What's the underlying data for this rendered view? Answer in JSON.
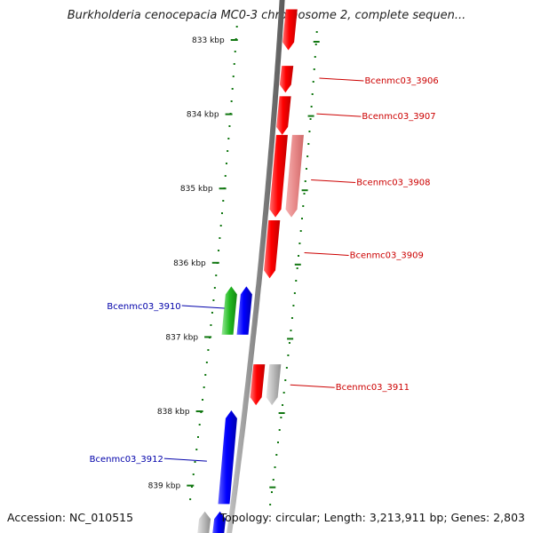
{
  "header": {
    "title": "Burkholderia cenocepacia MC0-3 chromosome 2, complete sequen..."
  },
  "footer": {
    "accession": "Accession: NC_010515",
    "summary": "Topology: circular; Length: 3,213,911 bp; Genes: 2,803"
  },
  "colors": {
    "forward_gene": "#ff0000",
    "forward_gene_faded": "#e88a8a",
    "reverse_gene": "#0000ff",
    "green_gene": "#22bb22",
    "pseudo_gene": "#bbbbbb",
    "backbone": "#888888",
    "ticks": "#117711",
    "forward_label": "#cc0000",
    "reverse_label": "#0000aa"
  },
  "ruler": [
    {
      "label": "833 kbp",
      "kbp": 833
    },
    {
      "label": "834 kbp",
      "kbp": 834
    },
    {
      "label": "835 kbp",
      "kbp": 835
    },
    {
      "label": "836 kbp",
      "kbp": 836
    },
    {
      "label": "837 kbp",
      "kbp": 837
    },
    {
      "label": "838 kbp",
      "kbp": 838
    },
    {
      "label": "839 kbp",
      "kbp": 839
    }
  ],
  "genes": [
    {
      "strand": "+",
      "start": 832.6,
      "end": 833.15,
      "type": "forward"
    },
    {
      "strand": "+",
      "start": 833.36,
      "end": 833.72,
      "type": "forward"
    },
    {
      "strand": "+",
      "start": 833.77,
      "end": 834.29,
      "type": "forward"
    },
    {
      "strand": "+",
      "start": 834.29,
      "end": 835.4,
      "type": "forward"
    },
    {
      "strand": "+",
      "start": 834.29,
      "end": 835.4,
      "type": "forward_faded",
      "lane": 2
    },
    {
      "strand": "+",
      "start": 835.44,
      "end": 836.22,
      "type": "forward"
    },
    {
      "strand": "-",
      "start": 836.33,
      "end": 836.98,
      "type": "green",
      "lane": 2
    },
    {
      "strand": "-",
      "start": 836.33,
      "end": 836.98,
      "type": "reverse"
    },
    {
      "strand": "+",
      "start": 837.38,
      "end": 837.93,
      "type": "forward"
    },
    {
      "strand": "+",
      "start": 837.38,
      "end": 837.93,
      "type": "pseudo",
      "lane": 2
    },
    {
      "strand": "-",
      "start": 838.0,
      "end": 839.26,
      "type": "reverse"
    },
    {
      "strand": "-",
      "start": 839.36,
      "end": 839.7,
      "type": "pseudo",
      "lane": 2
    },
    {
      "strand": "-",
      "start": 839.36,
      "end": 839.7,
      "type": "reverse"
    }
  ],
  "labels": [
    {
      "text": "Bcenmc03_3906",
      "side": "right",
      "kbp": 833.55
    },
    {
      "text": "Bcenmc03_3907",
      "side": "right",
      "kbp": 834.03
    },
    {
      "text": "Bcenmc03_3908",
      "side": "right",
      "kbp": 834.92
    },
    {
      "text": "Bcenmc03_3909",
      "side": "right",
      "kbp": 835.9
    },
    {
      "text": "Bcenmc03_3910",
      "side": "left",
      "kbp": 836.6
    },
    {
      "text": "Bcenmc03_3911",
      "side": "right",
      "kbp": 837.68
    },
    {
      "text": "Bcenmc03_3912",
      "side": "left",
      "kbp": 838.66
    }
  ]
}
